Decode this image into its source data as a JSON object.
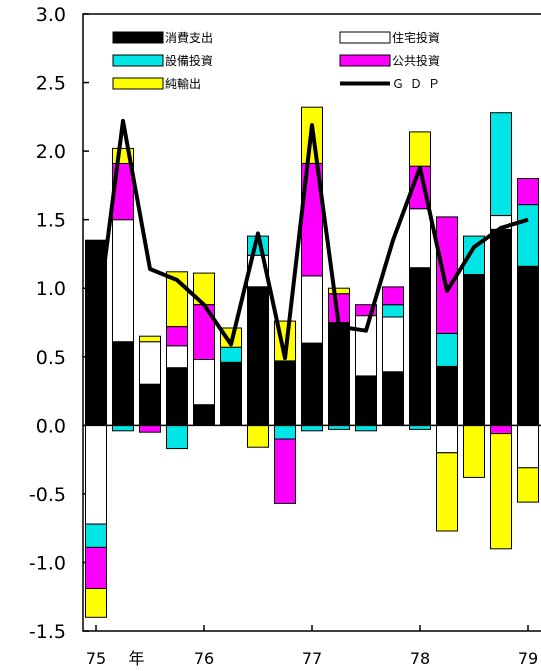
{
  "chart_data": {
    "type": "bar",
    "stacked": true,
    "ylim": [
      -1.5,
      3.0
    ],
    "yticks": [
      "3.0",
      "2.5",
      "2.0",
      "1.5",
      "1.0",
      "0.5",
      "0.0",
      "-0.5",
      "-1.0",
      "-1.5"
    ],
    "ytick_values": [
      3.0,
      2.5,
      2.0,
      1.5,
      1.0,
      0.5,
      0.0,
      -0.5,
      -1.0,
      -1.5
    ],
    "xtick_labels": [
      "75",
      "年",
      "76",
      "77",
      "78",
      "79"
    ],
    "xtick_positions": [
      0,
      1.5,
      4,
      8,
      12,
      16
    ],
    "categories_count": 17,
    "legend_position": "top",
    "series": [
      {
        "name": "消費支出",
        "color": "#000000",
        "values": [
          1.35,
          0.61,
          0.3,
          0.42,
          0.15,
          0.46,
          1.01,
          0.47,
          0.6,
          0.75,
          0.36,
          0.39,
          1.15,
          0.43,
          1.1,
          1.43,
          1.16
        ]
      },
      {
        "name": "住宅投資",
        "color": "#ffffff",
        "values": [
          -0.72,
          0.89,
          0.31,
          0.16,
          0.33,
          0.0,
          0.23,
          0.0,
          0.49,
          0.0,
          0.44,
          0.4,
          0.43,
          -0.2,
          0.0,
          0.1,
          -0.31
        ]
      },
      {
        "name": "設備投資",
        "color": "#00e6e6",
        "values": [
          -0.17,
          -0.04,
          0.0,
          -0.17,
          0.0,
          0.11,
          0.14,
          -0.1,
          -0.04,
          -0.03,
          -0.04,
          0.09,
          -0.03,
          0.24,
          0.28,
          0.75,
          0.45
        ]
      },
      {
        "name": "公共投資",
        "color": "#ff00ff",
        "values": [
          -0.3,
          0.41,
          -0.05,
          0.14,
          0.4,
          0.0,
          0.0,
          -0.47,
          0.82,
          0.21,
          0.08,
          0.13,
          0.31,
          0.85,
          0.0,
          -0.06,
          0.19
        ]
      },
      {
        "name": "純輸出",
        "color": "#ffff00",
        "values": [
          -0.21,
          0.11,
          0.04,
          0.4,
          0.23,
          0.14,
          -0.16,
          0.29,
          0.41,
          0.04,
          0.0,
          0.0,
          0.25,
          -0.57,
          -0.38,
          -0.84,
          -0.25
        ]
      }
    ],
    "line": {
      "name": "ＧＤＰ",
      "color": "#000000",
      "values": [
        0.7,
        2.22,
        1.14,
        1.06,
        0.88,
        0.59,
        1.4,
        0.49,
        2.19,
        0.72,
        0.69,
        1.35,
        1.88,
        0.98,
        1.3,
        1.44,
        1.5
      ]
    }
  }
}
